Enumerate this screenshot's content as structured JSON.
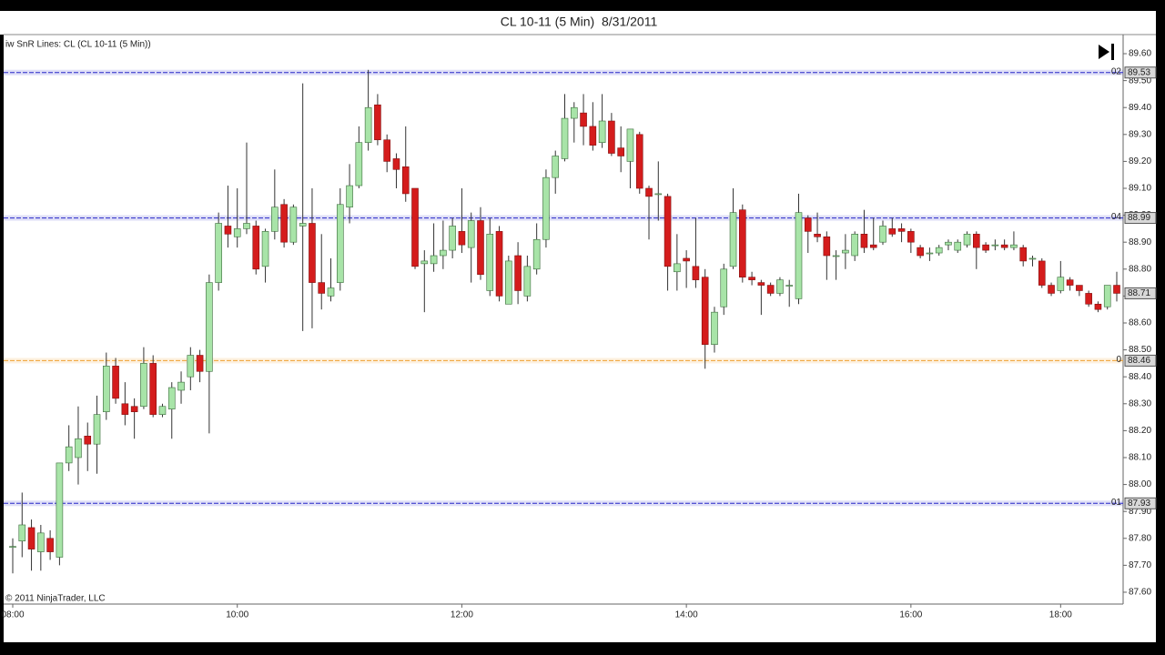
{
  "chart_data": {
    "type": "candlestick",
    "title": "CL 10-11 (5 Min)  8/31/2011",
    "indicator_label": "iw SnR Lines: CL (CL 10-11 (5 Min))",
    "copyright": "© 2011 NinjaTrader, LLC",
    "x": [
      "08:00",
      "08:05",
      "08:10",
      "08:15",
      "08:20",
      "08:25",
      "08:30",
      "08:35",
      "08:40",
      "08:45",
      "08:50",
      "08:55",
      "09:00",
      "09:05",
      "09:10",
      "09:15",
      "09:20",
      "09:25",
      "09:30",
      "09:35",
      "09:40",
      "09:45",
      "09:50",
      "09:55",
      "10:00",
      "10:05",
      "10:10",
      "10:15",
      "10:20",
      "10:25",
      "10:30",
      "10:35",
      "10:40",
      "10:45",
      "10:50",
      "10:55",
      "11:00",
      "11:05",
      "11:10",
      "11:15",
      "11:20",
      "11:25",
      "11:30",
      "11:35",
      "11:40",
      "11:45",
      "11:50",
      "11:55",
      "12:00",
      "12:05",
      "12:10",
      "12:15",
      "12:20",
      "12:25",
      "12:30",
      "12:35",
      "12:40",
      "12:45",
      "12:50",
      "12:55",
      "13:00",
      "13:05",
      "13:10",
      "13:15",
      "13:20",
      "13:25",
      "13:30",
      "13:35",
      "13:40",
      "13:45",
      "13:50",
      "13:55",
      "14:00",
      "14:05",
      "14:10",
      "14:15",
      "14:20",
      "14:25",
      "14:30",
      "14:35",
      "14:40",
      "14:45",
      "14:50",
      "14:55",
      "15:00",
      "15:05",
      "15:10",
      "15:15",
      "15:20",
      "15:25",
      "15:30",
      "15:35",
      "15:40",
      "15:45",
      "15:50",
      "15:55",
      "16:00",
      "16:05",
      "16:10",
      "16:15",
      "16:20",
      "16:25",
      "16:30",
      "16:35",
      "16:40",
      "16:45",
      "16:50",
      "16:55",
      "17:00",
      "17:05",
      "17:10",
      "17:15",
      "18:00",
      "18:05",
      "18:10",
      "18:15",
      "18:20",
      "18:25",
      "18:30"
    ],
    "open": [
      87.77,
      87.79,
      87.84,
      87.75,
      87.8,
      87.73,
      88.08,
      88.1,
      88.18,
      88.15,
      88.27,
      88.44,
      88.3,
      88.29,
      88.29,
      88.45,
      88.26,
      88.28,
      88.35,
      88.4,
      88.48,
      88.42,
      88.75,
      88.96,
      88.92,
      88.95,
      88.96,
      88.81,
      88.94,
      89.04,
      88.9,
      88.96,
      88.97,
      88.75,
      88.7,
      88.75,
      89.03,
      89.11,
      89.27,
      89.41,
      89.28,
      89.21,
      89.18,
      89.1,
      88.82,
      88.82,
      88.85,
      88.87,
      88.94,
      88.88,
      88.98,
      88.72,
      88.94,
      88.67,
      88.85,
      88.7,
      88.8,
      88.91,
      89.14,
      89.21,
      89.36,
      89.38,
      89.33,
      89.27,
      89.35,
      89.25,
      89.2,
      89.3,
      89.1,
      89.08,
      89.07,
      88.79,
      88.84,
      88.81,
      88.77,
      88.52,
      88.66,
      88.81,
      89.02,
      88.77,
      88.75,
      88.74,
      88.71,
      88.74,
      88.69,
      88.99,
      88.93,
      88.92,
      88.85,
      88.86,
      88.85,
      88.93,
      88.89,
      88.9,
      88.95,
      88.95,
      88.94,
      88.88,
      88.86,
      88.86,
      88.89,
      88.87,
      88.89,
      88.93,
      88.89,
      88.89,
      88.89,
      88.88,
      88.88,
      88.84,
      88.83,
      88.74,
      88.72,
      88.76,
      88.74,
      88.71,
      88.67,
      88.66,
      88.74
    ],
    "high": [
      87.8,
      87.97,
      87.87,
      87.85,
      87.83,
      88.08,
      88.22,
      88.29,
      88.23,
      88.33,
      88.49,
      88.47,
      88.38,
      88.32,
      88.51,
      88.48,
      88.3,
      88.38,
      88.42,
      88.51,
      88.5,
      88.78,
      89.01,
      89.11,
      89.1,
      89.27,
      88.98,
      88.95,
      89.17,
      89.06,
      89.04,
      89.49,
      89.1,
      88.93,
      88.84,
      89.1,
      89.19,
      89.33,
      89.54,
      89.45,
      89.3,
      89.23,
      89.33,
      89.1,
      88.87,
      88.97,
      88.98,
      88.99,
      89.1,
      89.01,
      89.03,
      88.99,
      88.96,
      88.85,
      88.9,
      88.85,
      88.97,
      89.17,
      89.24,
      89.45,
      89.42,
      89.45,
      89.42,
      89.45,
      89.38,
      89.33,
      89.32,
      89.31,
      89.11,
      89.2,
      89.08,
      88.93,
      88.87,
      88.99,
      88.8,
      88.66,
      88.82,
      89.1,
      89.04,
      88.79,
      88.76,
      88.75,
      88.77,
      88.76,
      89.08,
      89.0,
      89.01,
      88.94,
      88.87,
      88.93,
      88.94,
      89.02,
      88.99,
      88.98,
      88.99,
      88.97,
      88.95,
      88.89,
      88.88,
      88.89,
      88.91,
      88.91,
      88.94,
      88.94,
      88.9,
      88.91,
      88.91,
      88.94,
      88.89,
      88.85,
      88.84,
      88.75,
      88.83,
      88.77,
      88.74,
      88.72,
      88.68,
      88.74,
      88.79
    ],
    "low": [
      87.67,
      87.73,
      87.68,
      87.68,
      87.72,
      87.7,
      88.05,
      88.0,
      88.05,
      88.04,
      88.24,
      88.3,
      88.22,
      88.17,
      88.28,
      88.25,
      88.25,
      88.17,
      88.3,
      88.35,
      88.38,
      88.19,
      88.72,
      88.88,
      88.88,
      88.93,
      88.78,
      88.75,
      88.91,
      88.88,
      88.89,
      88.57,
      88.58,
      88.65,
      88.68,
      88.72,
      88.97,
      89.1,
      89.24,
      89.26,
      89.16,
      89.1,
      89.05,
      88.8,
      88.64,
      88.79,
      88.8,
      88.84,
      88.86,
      88.75,
      88.76,
      88.7,
      88.68,
      88.67,
      88.67,
      88.68,
      88.78,
      88.88,
      89.08,
      89.2,
      89.27,
      89.26,
      89.24,
      89.25,
      89.22,
      89.16,
      89.1,
      89.08,
      88.91,
      88.98,
      88.72,
      88.72,
      88.73,
      88.73,
      88.43,
      88.49,
      88.63,
      88.8,
      88.75,
      88.74,
      88.63,
      88.7,
      88.7,
      88.66,
      88.67,
      88.86,
      88.9,
      88.76,
      88.76,
      88.8,
      88.83,
      88.86,
      88.87,
      88.89,
      88.92,
      88.9,
      88.86,
      88.84,
      88.83,
      88.85,
      88.87,
      88.86,
      88.88,
      88.8,
      88.86,
      88.87,
      88.87,
      88.87,
      88.81,
      88.81,
      88.73,
      88.7,
      88.71,
      88.72,
      88.7,
      88.66,
      88.64,
      88.65,
      88.68
    ],
    "close": [
      87.77,
      87.85,
      87.76,
      87.82,
      87.75,
      88.08,
      88.14,
      88.17,
      88.15,
      88.26,
      88.44,
      88.32,
      88.26,
      88.27,
      88.45,
      88.26,
      88.29,
      88.36,
      88.38,
      88.48,
      88.42,
      88.75,
      88.97,
      88.93,
      88.95,
      88.97,
      88.8,
      88.94,
      89.03,
      88.9,
      89.03,
      88.97,
      88.75,
      88.71,
      88.73,
      89.04,
      89.11,
      89.27,
      89.4,
      89.28,
      89.2,
      89.17,
      89.08,
      88.81,
      88.83,
      88.85,
      88.87,
      88.96,
      88.89,
      88.98,
      88.78,
      88.93,
      88.7,
      88.83,
      88.72,
      88.81,
      88.91,
      89.14,
      89.22,
      89.36,
      89.4,
      89.33,
      89.26,
      89.35,
      89.23,
      89.22,
      89.32,
      89.1,
      89.07,
      89.08,
      88.81,
      88.82,
      88.83,
      88.76,
      88.52,
      88.64,
      88.8,
      89.01,
      88.77,
      88.76,
      88.74,
      88.71,
      88.76,
      88.74,
      89.01,
      88.94,
      88.92,
      88.85,
      88.85,
      88.87,
      88.93,
      88.88,
      88.88,
      88.96,
      88.93,
      88.94,
      88.9,
      88.85,
      88.86,
      88.88,
      88.9,
      88.9,
      88.93,
      88.88,
      88.87,
      88.89,
      88.88,
      88.89,
      88.83,
      88.84,
      88.74,
      88.71,
      88.77,
      88.74,
      88.72,
      88.67,
      88.65,
      88.74,
      88.71
    ],
    "up_color": "#a8e4a8",
    "down_color": "#d41c1c",
    "xticks": [
      "08:00",
      "10:00",
      "12:00",
      "14:00",
      "16:00",
      "18:00"
    ],
    "ylim": [
      87.556,
      89.671
    ],
    "yticks": [
      {
        "value": 87.6,
        "label": "87.60"
      },
      {
        "value": 87.7,
        "label": "87.70"
      },
      {
        "value": 87.8,
        "label": "87.80"
      },
      {
        "value": 87.9,
        "label": "87.90"
      },
      {
        "value": 88.0,
        "label": "88.00"
      },
      {
        "value": 88.1,
        "label": "88.10"
      },
      {
        "value": 88.2,
        "label": "88.20"
      },
      {
        "value": 88.3,
        "label": "88.30"
      },
      {
        "value": 88.4,
        "label": "88.40"
      },
      {
        "value": 88.5,
        "label": "88.50"
      },
      {
        "value": 88.6,
        "label": "88.60"
      },
      {
        "value": 88.7,
        "label": "88.70"
      },
      {
        "value": 88.8,
        "label": "88.80"
      },
      {
        "value": 88.9,
        "label": "88.90"
      },
      {
        "value": 89.0,
        "label": "89.00"
      },
      {
        "value": 89.1,
        "label": "89.10"
      },
      {
        "value": 89.2,
        "label": "89.20"
      },
      {
        "value": 89.3,
        "label": "89.30"
      },
      {
        "value": 89.4,
        "label": "89.40"
      },
      {
        "value": 89.5,
        "label": "89.50"
      },
      {
        "value": 89.6,
        "label": "89.60"
      }
    ],
    "levels": [
      {
        "label": "02",
        "value": 89.53,
        "color": "#2828c8"
      },
      {
        "label": "04",
        "value": 88.99,
        "color": "#2828c8"
      },
      {
        "label": "0",
        "value": 88.46,
        "color": "#f0a030"
      },
      {
        "label": "01",
        "value": 87.93,
        "color": "#2828c8"
      }
    ],
    "last_price": 88.71
  }
}
